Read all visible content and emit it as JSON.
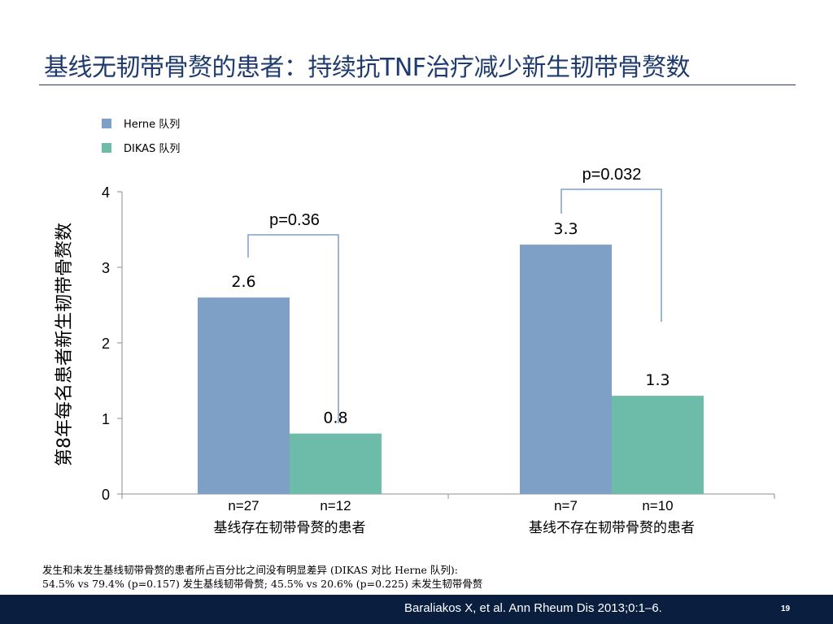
{
  "slide": {
    "title": "基线无韧带骨赘的患者：持续抗TNF治疗减少新生韧带骨赘数",
    "footnote_line1": "发生和未发生基线韧带骨赘的患者所占百分比之间没有明显差异 (DIKAS 对比 Herne 队列):",
    "footnote_line2": "54.5% vs 79.4% (p=0.157) 发生基线韧带骨赘; 45.5% vs 20.6% (p=0.225) 未发生韧带骨赘",
    "citation": "Baraliakos X, et al. Ann Rheum Dis 2013;0:1–6.",
    "page_number": "19"
  },
  "chart_data": {
    "type": "bar",
    "ylabel": "第8年每名患者新生韧带骨赘数",
    "ylim": [
      0,
      4
    ],
    "yticks": [
      0,
      1,
      2,
      3,
      4
    ],
    "categories": [
      "基线存在韧带骨赘的患者",
      "基线不存在韧带骨赘的患者"
    ],
    "series": [
      {
        "name": "Herne 队列",
        "color": "#7ea0c6",
        "values": [
          2.6,
          3.3
        ],
        "data_labels": [
          "2.6",
          "3.3"
        ],
        "n_labels": [
          "n=27",
          "n=7"
        ]
      },
      {
        "name": "DIKAS 队列",
        "color": "#6dbcaa",
        "values": [
          0.8,
          1.3
        ],
        "data_labels": [
          "0.8",
          "1.3"
        ],
        "n_labels": [
          "n=12",
          "n=10"
        ]
      }
    ],
    "comparisons": [
      {
        "category_index": 0,
        "label": "p=0.36"
      },
      {
        "category_index": 1,
        "label": "p=0.032"
      }
    ],
    "legend_position": "top-left",
    "grid": false
  }
}
